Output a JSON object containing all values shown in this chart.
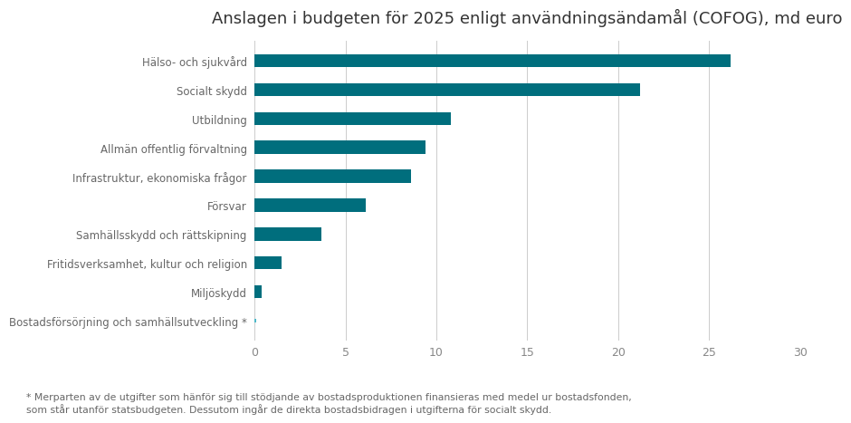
{
  "title": "Anslagen i budgeten för 2025 enligt användningsändamål (COFOG), md euro",
  "categories": [
    "Hälso- och sjukvård",
    "Socialt skydd",
    "Utbildning",
    "Allmän offentlig förvaltning",
    "Infrastruktur, ekonomiska frågor",
    "Försvar",
    "Samhällsskydd och rättskipning",
    "Fritidsverksamhet, kultur och religion",
    "Miljöskydd",
    "Bostadsförsörjning och samhällsutveckling *"
  ],
  "values": [
    26.2,
    21.2,
    10.8,
    9.4,
    8.6,
    6.1,
    3.7,
    1.5,
    0.4,
    0.1
  ],
  "bar_color": "#006e7d",
  "last_bar_color": "#4db8c8",
  "xlim": [
    0,
    30
  ],
  "xticks": [
    0,
    5,
    10,
    15,
    20,
    25,
    30
  ],
  "footnote_line1": "* Merparten av de utgifter som hänför sig till stödjande av bostadsproduktionen finansieras med medel ur bostadsfonden,",
  "footnote_line2": "som står utanför statsbudgeten. Dessutom ingår de direkta bostadsbidragen i utgifterna för socialt skydd.",
  "background_color": "#ffffff",
  "title_fontsize": 13,
  "label_fontsize": 8.5,
  "tick_fontsize": 9,
  "footnote_fontsize": 7.8,
  "bar_height": 0.45,
  "label_color": "#666666",
  "tick_color": "#888888",
  "grid_color": "#cccccc",
  "title_color": "#333333"
}
